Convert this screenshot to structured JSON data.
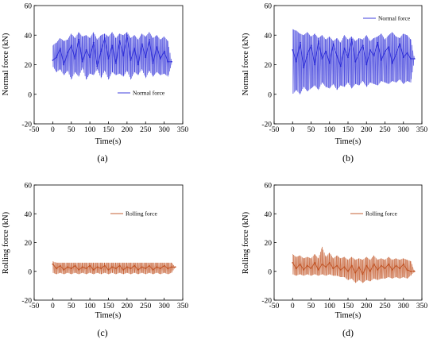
{
  "chart_data": [
    {
      "type": "line",
      "panel_label": "(a)",
      "xlabel": "Time(s)",
      "ylabel": "Normal force (kN)",
      "xlim": [
        -50,
        350
      ],
      "ylim": [
        -20,
        60
      ],
      "xticks": [
        -50,
        0,
        50,
        100,
        150,
        200,
        250,
        300,
        350
      ],
      "yticks": [
        -20,
        0,
        20,
        40,
        60
      ],
      "legend_position": "center-right",
      "color": "#2a2ad8",
      "series": [
        {
          "name": "Normal force",
          "x": [
            0,
            10,
            20,
            30,
            40,
            50,
            60,
            70,
            80,
            90,
            100,
            110,
            120,
            130,
            140,
            150,
            160,
            170,
            180,
            190,
            200,
            210,
            220,
            230,
            240,
            250,
            260,
            270,
            280,
            290,
            300,
            310,
            320
          ],
          "y": [
            23,
            25,
            31,
            20,
            28,
            33,
            24,
            37,
            22,
            30,
            25,
            35,
            19,
            29,
            38,
            24,
            33,
            21,
            36,
            26,
            40,
            23,
            31,
            20,
            34,
            25,
            37,
            21,
            32,
            24,
            29,
            22,
            22
          ],
          "y_min": [
            19,
            15,
            17,
            13,
            16,
            10,
            15,
            12,
            18,
            10,
            14,
            13,
            17,
            11,
            16,
            10,
            15,
            13,
            14,
            12,
            16,
            10,
            15,
            13,
            17,
            11,
            16,
            12,
            15,
            13,
            14,
            12,
            20
          ],
          "y_max": [
            33,
            35,
            38,
            36,
            37,
            41,
            38,
            42,
            39,
            40,
            38,
            42,
            37,
            40,
            41,
            39,
            42,
            38,
            41,
            40,
            42,
            38,
            40,
            37,
            41,
            39,
            42,
            38,
            40,
            37,
            39,
            36,
            22
          ]
        }
      ]
    },
    {
      "type": "line",
      "panel_label": "(b)",
      "xlabel": "Time(s)",
      "ylabel": "Normal force (kN)",
      "xlim": [
        -50,
        350
      ],
      "ylim": [
        -20,
        60
      ],
      "xticks": [
        -50,
        0,
        50,
        100,
        150,
        200,
        250,
        300,
        350
      ],
      "yticks": [
        -20,
        0,
        20,
        40,
        60
      ],
      "legend_position": "top-right",
      "color": "#2a2ad8",
      "series": [
        {
          "name": "Normal force",
          "x": [
            0,
            10,
            20,
            30,
            40,
            50,
            60,
            70,
            80,
            90,
            100,
            110,
            120,
            130,
            140,
            150,
            160,
            170,
            180,
            190,
            200,
            210,
            220,
            230,
            240,
            250,
            260,
            270,
            280,
            290,
            300,
            310,
            320,
            330
          ],
          "y": [
            30,
            22,
            35,
            18,
            27,
            33,
            20,
            36,
            24,
            29,
            21,
            34,
            26,
            19,
            31,
            25,
            37,
            22,
            28,
            33,
            20,
            30,
            26,
            35,
            23,
            29,
            32,
            21,
            27,
            34,
            25,
            28,
            24,
            24
          ],
          "y_min": [
            0,
            3,
            0,
            5,
            2,
            4,
            6,
            3,
            8,
            5,
            4,
            7,
            3,
            6,
            5,
            8,
            4,
            7,
            6,
            9,
            5,
            8,
            7,
            6,
            9,
            8,
            7,
            9,
            8,
            10,
            7,
            9,
            8,
            24
          ],
          "y_max": [
            44,
            43,
            41,
            40,
            42,
            39,
            41,
            38,
            40,
            37,
            39,
            36,
            38,
            35,
            40,
            37,
            39,
            36,
            38,
            37,
            40,
            36,
            38,
            39,
            41,
            37,
            40,
            42,
            39,
            38,
            41,
            40,
            37,
            24
          ]
        }
      ]
    },
    {
      "type": "line",
      "panel_label": "(c)",
      "xlabel": "Time(s)",
      "ylabel": "Rolling force (kN)",
      "xlim": [
        -50,
        350
      ],
      "ylim": [
        -20,
        60
      ],
      "xticks": [
        -50,
        0,
        50,
        100,
        150,
        200,
        250,
        300,
        350
      ],
      "yticks": [
        -20,
        0,
        20,
        40,
        60
      ],
      "legend_position": "top-center",
      "color": "#c05020",
      "series": [
        {
          "name": "Rolling force",
          "x": [
            0,
            10,
            20,
            30,
            40,
            50,
            60,
            70,
            80,
            90,
            100,
            110,
            120,
            130,
            140,
            150,
            160,
            170,
            180,
            190,
            200,
            210,
            220,
            230,
            240,
            250,
            260,
            270,
            280,
            290,
            300,
            310,
            320,
            330
          ],
          "y": [
            5,
            2,
            4,
            1,
            3,
            2,
            4,
            1,
            3,
            2,
            4,
            1,
            3,
            2,
            4,
            1,
            3,
            2,
            4,
            1,
            3,
            2,
            4,
            1,
            3,
            2,
            4,
            1,
            3,
            2,
            4,
            2,
            3,
            3
          ],
          "y_min": [
            -1,
            -2,
            -1,
            -2,
            -1,
            -2,
            -1,
            -2,
            -1,
            -2,
            -1,
            -2,
            -1,
            -2,
            -1,
            -2,
            -1,
            -2,
            -1,
            -2,
            -1,
            -2,
            -1,
            -2,
            -1,
            -2,
            -1,
            -2,
            -1,
            -2,
            -1,
            -2,
            -1,
            3
          ],
          "y_max": [
            7,
            6,
            6,
            6,
            6,
            6,
            6,
            6,
            6,
            6,
            6,
            6,
            6,
            6,
            6,
            6,
            6,
            6,
            6,
            6,
            6,
            6,
            6,
            6,
            6,
            6,
            6,
            6,
            6,
            6,
            6,
            6,
            6,
            3
          ]
        }
      ]
    },
    {
      "type": "line",
      "panel_label": "(d)",
      "xlabel": "Time(s)",
      "ylabel": "Rolling force (kN)",
      "xlim": [
        -50,
        350
      ],
      "ylim": [
        -20,
        60
      ],
      "xticks": [
        -50,
        0,
        50,
        100,
        150,
        200,
        250,
        300,
        350
      ],
      "yticks": [
        -20,
        0,
        20,
        40,
        60
      ],
      "legend_position": "top-center",
      "color": "#c05020",
      "series": [
        {
          "name": "Rolling force",
          "x": [
            0,
            10,
            20,
            30,
            40,
            50,
            60,
            70,
            80,
            90,
            100,
            110,
            120,
            130,
            140,
            150,
            160,
            170,
            180,
            190,
            200,
            210,
            220,
            230,
            240,
            250,
            260,
            270,
            280,
            290,
            300,
            310,
            320,
            330
          ],
          "y": [
            6,
            2,
            5,
            1,
            4,
            2,
            6,
            1,
            5,
            3,
            6,
            2,
            4,
            1,
            3,
            0,
            4,
            -1,
            3,
            -2,
            4,
            0,
            5,
            1,
            4,
            2,
            5,
            1,
            4,
            2,
            5,
            1,
            0,
            0
          ],
          "y_min": [
            -2,
            -3,
            -2,
            -3,
            -2,
            -3,
            -2,
            -3,
            -2,
            -3,
            -2,
            -3,
            -3,
            -4,
            -4,
            -6,
            -5,
            -8,
            -6,
            -8,
            -6,
            -7,
            -5,
            -6,
            -5,
            -5,
            -4,
            -5,
            -4,
            -5,
            -4,
            -5,
            -3,
            0
          ],
          "y_max": [
            12,
            10,
            11,
            9,
            10,
            9,
            12,
            9,
            17,
            10,
            13,
            9,
            11,
            9,
            10,
            8,
            10,
            8,
            9,
            8,
            10,
            8,
            11,
            8,
            9,
            8,
            10,
            8,
            9,
            8,
            9,
            8,
            7,
            0
          ]
        }
      ]
    }
  ]
}
